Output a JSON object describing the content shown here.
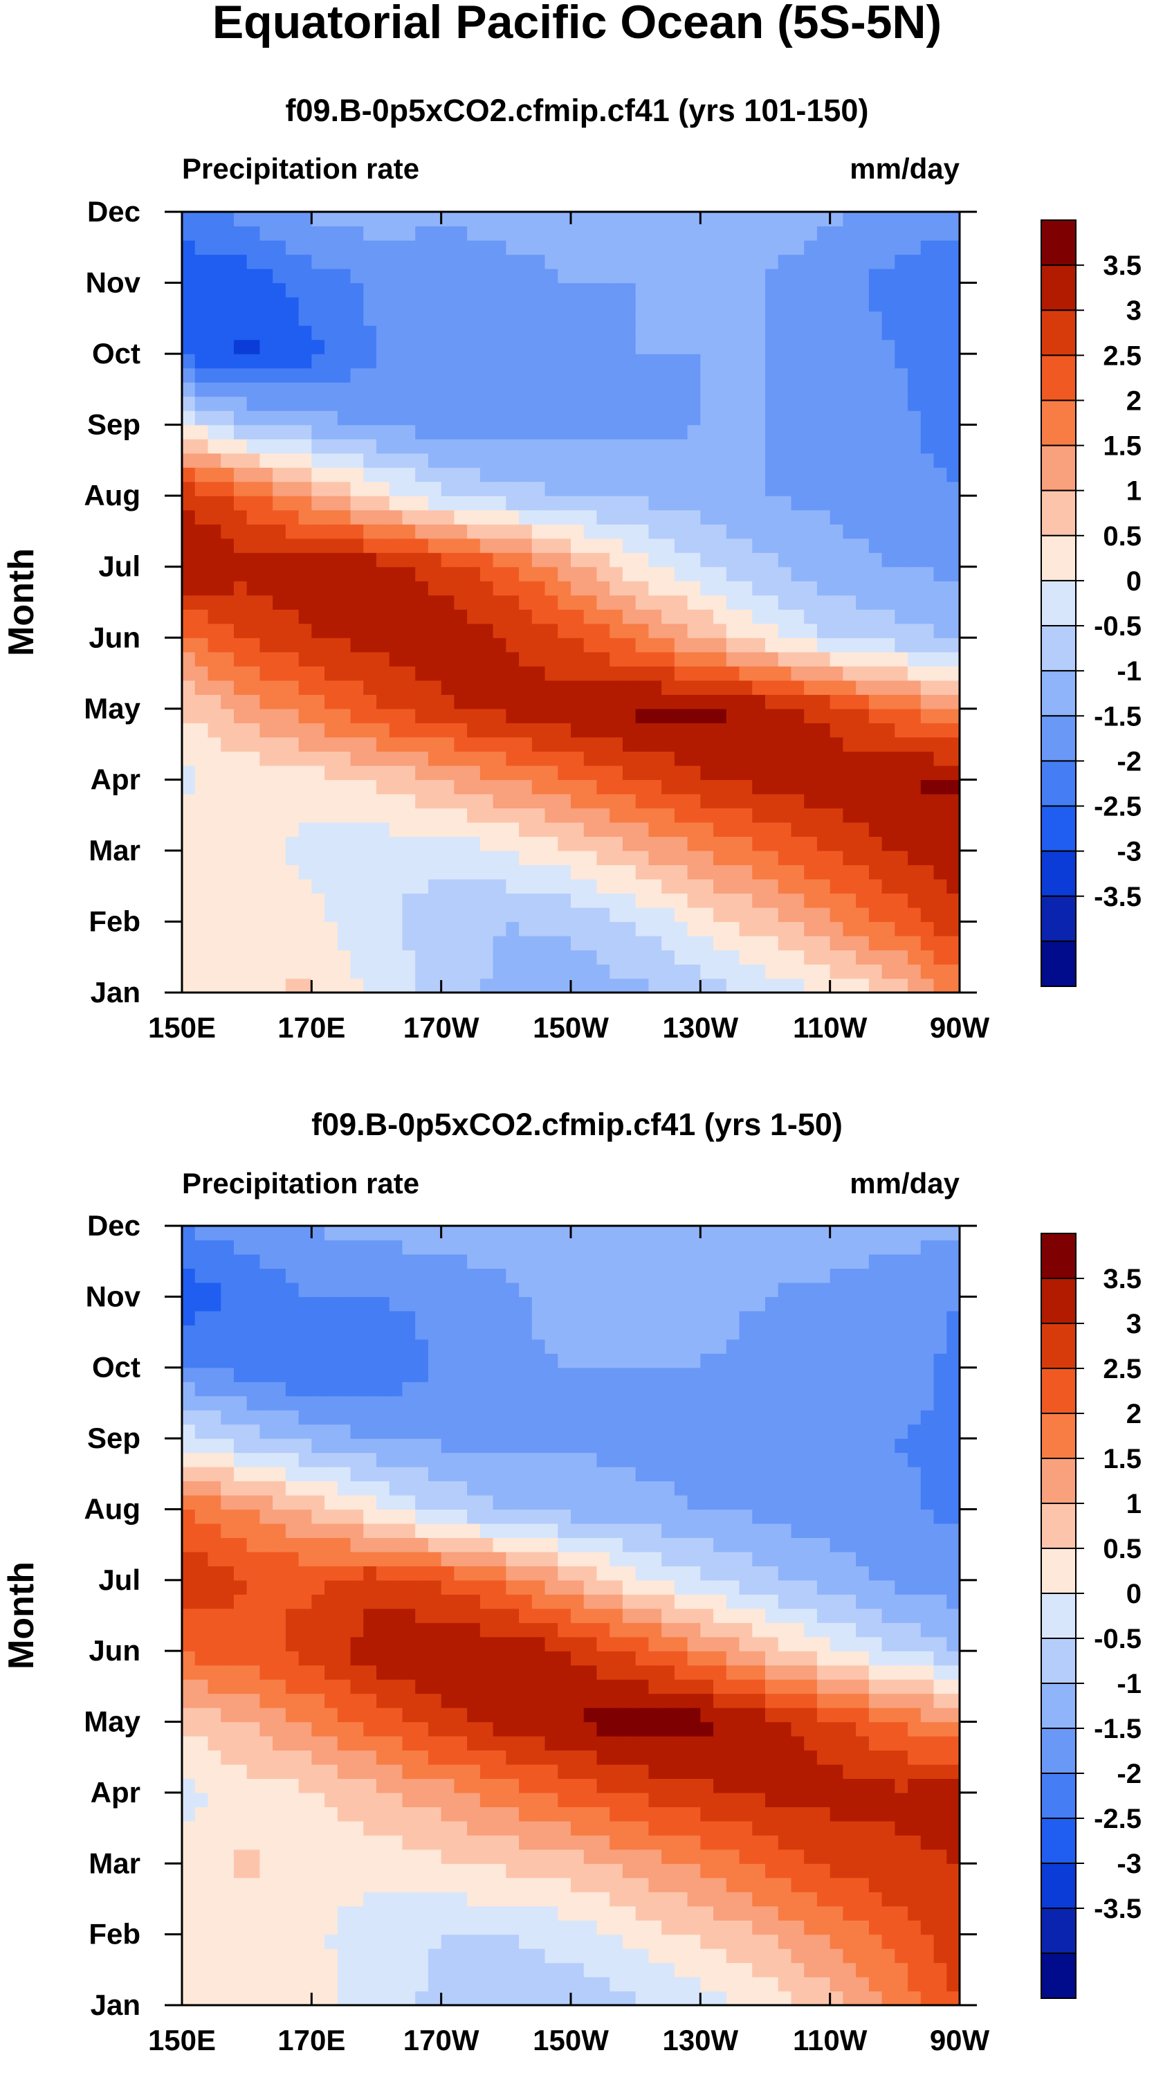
{
  "title": "Equatorial Pacific Ocean (5S-5N)",
  "chart_data": [
    {
      "type": "heatmap",
      "title": "f09.B-0p5xCO2.cfmip.cf41 (yrs 101-150)",
      "left_label": "Precipitation rate",
      "right_label": "mm/day",
      "ylabel": "Month",
      "xlabel": "",
      "x_ticks": [
        "150E",
        "170E",
        "170W",
        "150W",
        "130W",
        "110W",
        "90W"
      ],
      "y_ticks": [
        "Jan",
        "Feb",
        "Mar",
        "Apr",
        "May",
        "Jun",
        "Jul",
        "Aug",
        "Sep",
        "Oct",
        "Nov",
        "Dec"
      ],
      "xlim": [
        150,
        270
      ],
      "ylim": [
        1,
        12
      ],
      "longitudes": [
        150,
        160,
        170,
        180,
        190,
        200,
        210,
        220,
        230,
        240,
        250,
        260,
        270
      ],
      "values": [
        [
          0.2,
          0.4,
          0.6,
          -0.2,
          -0.6,
          -1.2,
          -1.3,
          -1.1,
          -0.8,
          -0.4,
          0.1,
          0.6,
          1.8
        ],
        [
          0.3,
          0.5,
          0.2,
          -0.4,
          -0.8,
          -1.0,
          -0.9,
          -0.5,
          0.2,
          0.8,
          1.4,
          2.2,
          2.8
        ],
        [
          0.4,
          0.3,
          -0.2,
          -0.3,
          -0.3,
          0.0,
          0.4,
          1.0,
          1.5,
          2.0,
          2.5,
          3.0,
          3.3
        ],
        [
          -0.1,
          0.1,
          0.3,
          0.6,
          1.0,
          1.5,
          2.0,
          2.5,
          2.9,
          3.2,
          3.4,
          3.5,
          3.6
        ],
        [
          0.5,
          1.2,
          1.8,
          2.4,
          2.9,
          3.2,
          3.4,
          3.6,
          3.7,
          3.3,
          2.8,
          2.0,
          1.5
        ],
        [
          1.8,
          2.5,
          3.0,
          3.2,
          3.3,
          3.0,
          2.5,
          1.8,
          1.0,
          0.2,
          -0.5,
          -0.8,
          -1.0
        ],
        [
          3.6,
          3.2,
          3.4,
          3.3,
          2.8,
          2.2,
          1.2,
          0.2,
          -0.4,
          -0.9,
          -1.3,
          -1.5,
          -1.6
        ],
        [
          3.0,
          2.2,
          1.3,
          0.4,
          -0.4,
          -0.8,
          -1.0,
          -1.1,
          -1.3,
          -1.5,
          -1.6,
          -1.8,
          -2.0
        ],
        [
          0.0,
          -0.9,
          -1.3,
          -1.6,
          -1.7,
          -1.8,
          -1.7,
          -1.6,
          -1.5,
          -1.5,
          -1.6,
          -1.9,
          -2.2
        ],
        [
          -2.6,
          -3.1,
          -2.6,
          -2.0,
          -1.8,
          -1.7,
          -1.6,
          -1.5,
          -1.5,
          -1.5,
          -1.7,
          -2.0,
          -2.3
        ],
        [
          -2.9,
          -2.8,
          -2.3,
          -1.9,
          -1.8,
          -1.6,
          -1.5,
          -1.5,
          -1.5,
          -1.5,
          -1.8,
          -2.2,
          -2.5
        ],
        [
          -2.2,
          -1.8,
          -1.4,
          -1.3,
          -1.4,
          -1.4,
          -1.4,
          -1.3,
          -1.3,
          -1.3,
          -1.4,
          -1.6,
          -1.8
        ]
      ]
    },
    {
      "type": "heatmap",
      "title": "f09.B-0p5xCO2.cfmip.cf41 (yrs 1-50)",
      "left_label": "Precipitation rate",
      "right_label": "mm/day",
      "ylabel": "Month",
      "xlabel": "",
      "x_ticks": [
        "150E",
        "170E",
        "170W",
        "150W",
        "130W",
        "110W",
        "90W"
      ],
      "y_ticks": [
        "Jan",
        "Feb",
        "Mar",
        "Apr",
        "May",
        "Jun",
        "Jul",
        "Aug",
        "Sep",
        "Oct",
        "Nov",
        "Dec"
      ],
      "xlim": [
        150,
        270
      ],
      "ylim": [
        1,
        12
      ],
      "longitudes": [
        150,
        160,
        170,
        180,
        190,
        200,
        210,
        220,
        230,
        240,
        250,
        260,
        270
      ],
      "values": [
        [
          0.1,
          0.3,
          0.2,
          -0.3,
          -0.6,
          -0.8,
          -0.8,
          -0.6,
          -0.3,
          0.2,
          0.8,
          1.6,
          2.5
        ],
        [
          0.2,
          0.3,
          0.1,
          -0.3,
          -0.5,
          -0.5,
          -0.3,
          0.2,
          0.6,
          1.0,
          1.6,
          2.2,
          2.8
        ],
        [
          0.2,
          0.6,
          0.2,
          0.2,
          0.4,
          0.6,
          0.8,
          1.2,
          1.6,
          2.1,
          2.6,
          2.9,
          3.0
        ],
        [
          -0.2,
          0.3,
          0.4,
          0.9,
          1.3,
          1.8,
          2.2,
          2.6,
          2.9,
          3.1,
          3.2,
          3.1,
          3.2
        ],
        [
          0.6,
          1.0,
          1.6,
          2.2,
          2.8,
          3.2,
          3.5,
          3.8,
          3.7,
          3.2,
          2.7,
          2.0,
          1.5
        ],
        [
          2.1,
          2.3,
          2.7,
          3.3,
          3.5,
          3.4,
          3.0,
          2.4,
          1.6,
          0.8,
          0.1,
          -0.5,
          -1.0
        ],
        [
          2.9,
          2.5,
          2.4,
          2.8,
          2.4,
          1.8,
          1.0,
          0.2,
          -0.4,
          -0.9,
          -1.2,
          -1.6,
          -1.8
        ],
        [
          2.0,
          1.5,
          0.8,
          0.1,
          -0.6,
          -1.0,
          -1.2,
          -1.4,
          -1.5,
          -1.6,
          -1.8,
          -1.9,
          -2.1
        ],
        [
          -0.2,
          -0.8,
          -1.2,
          -1.5,
          -1.6,
          -1.7,
          -1.6,
          -1.6,
          -1.6,
          -1.7,
          -1.8,
          -2.0,
          -2.1
        ],
        [
          -1.9,
          -2.2,
          -2.5,
          -2.4,
          -1.9,
          -1.6,
          -1.5,
          -1.5,
          -1.5,
          -1.6,
          -1.7,
          -1.8,
          -2.1
        ],
        [
          -2.8,
          -2.4,
          -2.0,
          -2.0,
          -1.9,
          -1.6,
          -1.3,
          -1.2,
          -1.4,
          -1.5,
          -1.6,
          -1.8,
          -2.0
        ],
        [
          -2.0,
          -1.7,
          -1.5,
          -1.3,
          -1.3,
          -1.2,
          -1.2,
          -1.2,
          -1.2,
          -1.2,
          -1.3,
          -1.3,
          -1.4
        ]
      ]
    }
  ],
  "colorbar": {
    "labels": [
      "3.5",
      "3",
      "2.5",
      "2",
      "1.5",
      "1",
      "0.5",
      "0",
      "-0.5",
      "-1",
      "-1.5",
      "-2",
      "-2.5",
      "-3",
      "-3.5"
    ],
    "levels": [
      3.5,
      3,
      2.5,
      2,
      1.5,
      1,
      0.5,
      0,
      -0.5,
      -1,
      -1.5,
      -2,
      -2.5,
      -3,
      -3.5
    ],
    "colors_top_to_bottom": [
      "#7f0000",
      "#b31b00",
      "#d83b0b",
      "#f05a22",
      "#f77d45",
      "#f9a07c",
      "#fcc5ab",
      "#fde8d9",
      "#d8e6fb",
      "#b5cdfb",
      "#90b4fa",
      "#6a98f7",
      "#457df4",
      "#1f5ef0",
      "#0b3cd8",
      "#0a24b0",
      "#000c8c"
    ]
  }
}
